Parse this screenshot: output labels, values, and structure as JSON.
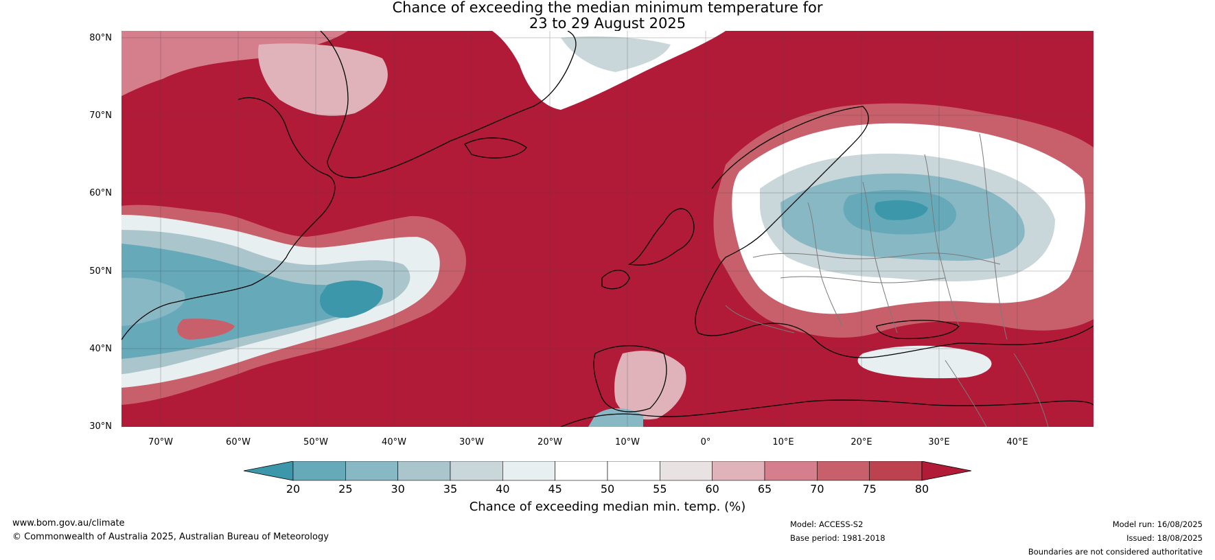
{
  "title": {
    "line1": "Chance of exceeding the median minimum temperature for",
    "line2": "23 to 29 August 2025"
  },
  "map": {
    "lat_labels": [
      "80°N",
      "70°N",
      "60°N",
      "50°N",
      "40°N",
      "30°N"
    ],
    "lon_labels": [
      "70°W",
      "60°W",
      "50°W",
      "40°W",
      "30°W",
      "20°W",
      "10°W",
      "0°",
      "10°E",
      "20°E",
      "30°E",
      "40°E"
    ]
  },
  "colorbar": {
    "ticks": [
      "20",
      "25",
      "30",
      "35",
      "40",
      "45",
      "50",
      "55",
      "60",
      "65",
      "70",
      "75",
      "80"
    ],
    "colors": [
      "#3c97ab",
      "#66a9b9",
      "#89b8c5",
      "#aac6cc",
      "#cad7da",
      "#e8eff1",
      "#ffffff",
      "#ffffff",
      "#e9e2e3",
      "#dfb3b9",
      "#d47f8b",
      "#c8606c",
      "#bd4250",
      "#b21b38"
    ],
    "label": "Chance of exceeding median min. temp. (%)"
  },
  "footer": {
    "website": "www.bom.gov.au/climate",
    "copyright": "© Commonwealth of Australia 2025, Australian Bureau of Meteorology",
    "model": "Model: ACCESS-S2",
    "base_period": "Base period: 1981-2018",
    "model_run": "Model run: 16/08/2025",
    "issued": "Issued: 18/08/2025",
    "disclaimer": "Boundaries are not considered authoritative"
  }
}
